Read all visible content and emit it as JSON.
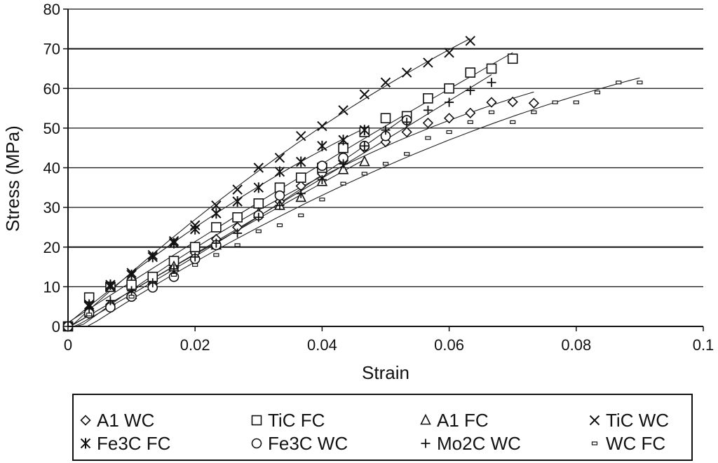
{
  "chart_data": {
    "type": "scatter",
    "title": "",
    "xlabel": "Strain",
    "ylabel": "Stress (MPa)",
    "xlim": [
      0,
      0.1
    ],
    "ylim": [
      0,
      80
    ],
    "x_ticks": [
      "0",
      "0.02",
      "0.04",
      "0.06",
      "0.08",
      "0.1"
    ],
    "y_ticks": [
      "0",
      "10",
      "20",
      "30",
      "40",
      "50",
      "60",
      "70",
      "80"
    ],
    "grid": "horizontal",
    "legend_position": "bottom",
    "series": [
      {
        "name": "A1 WC",
        "marker": "diamond",
        "x": [
          0,
          0.00333,
          0.00667,
          0.01,
          0.01333,
          0.01667,
          0.02,
          0.02333,
          0.02667,
          0.03,
          0.03333,
          0.03667,
          0.04,
          0.04333,
          0.04667,
          0.05,
          0.05333,
          0.05667,
          0.06,
          0.06333,
          0.06667,
          0.07,
          0.07333
        ],
        "y": [
          0,
          4,
          5.5,
          7.8,
          10.7,
          14.8,
          18.5,
          22,
          25,
          28.2,
          31.5,
          35.4,
          38.5,
          41.8,
          45,
          46.5,
          49,
          51.3,
          52.5,
          53.8,
          56.5,
          56.6,
          56.3
        ]
      },
      {
        "name": "TiC FC",
        "marker": "square",
        "x": [
          0,
          0.00333,
          0.00667,
          0.01,
          0.01333,
          0.01667,
          0.02,
          0.02333,
          0.02667,
          0.03,
          0.03333,
          0.03667,
          0.04,
          0.04333,
          0.04667,
          0.05,
          0.05333,
          0.05667,
          0.06,
          0.06333,
          0.06667,
          0.07
        ],
        "y": [
          0,
          7.3,
          10,
          10.5,
          12.5,
          16.5,
          20,
          25,
          27.5,
          31,
          35,
          37.5,
          40,
          45,
          49,
          52.5,
          53,
          57.5,
          60,
          64,
          65,
          67.5
        ]
      },
      {
        "name": "A1 FC",
        "marker": "triangle",
        "x": [
          0.00333,
          0.01,
          0.01667,
          0.02333,
          0.03,
          0.03333,
          0.03667,
          0.04,
          0.04333,
          0.04667
        ],
        "y": [
          3.5,
          8,
          15,
          20.5,
          28.5,
          30.5,
          32.5,
          36.5,
          39.5,
          41.5
        ]
      },
      {
        "name": "TiC WC",
        "marker": "x",
        "x": [
          0.00333,
          0.00667,
          0.01,
          0.01333,
          0.01667,
          0.02,
          0.02333,
          0.02667,
          0.03,
          0.03333,
          0.03667,
          0.04,
          0.04333,
          0.04667,
          0.05,
          0.05333,
          0.05667,
          0.06,
          0.06333
        ],
        "y": [
          5,
          10,
          13.5,
          18,
          21.5,
          25.5,
          30.5,
          34.5,
          40,
          42.5,
          48,
          50.5,
          54.5,
          58.5,
          61.5,
          64,
          66.5,
          69,
          72
        ]
      },
      {
        "name": "Fe3C FC",
        "marker": "asterisk",
        "x": [
          0,
          0.00333,
          0.00667,
          0.01,
          0.01333,
          0.01667,
          0.02,
          0.02333,
          0.02667,
          0.03,
          0.03333,
          0.03667,
          0.04,
          0.04333,
          0.04667
        ],
        "y": [
          0,
          5.5,
          10.5,
          13,
          17.5,
          21,
          24.5,
          28.5,
          31.5,
          35,
          39,
          41.5,
          45.5,
          47,
          49.5
        ]
      },
      {
        "name": "Fe3C WC",
        "marker": "circle",
        "x": [
          0,
          0.00333,
          0.00667,
          0.01,
          0.01333,
          0.01667,
          0.02,
          0.02333,
          0.03,
          0.03333,
          0.04,
          0.04333,
          0.04667,
          0.05,
          0.05333
        ],
        "y": [
          0,
          3.3,
          4.8,
          7.5,
          9.8,
          12.5,
          17,
          20.5,
          28,
          33,
          40.5,
          42.5,
          45.5,
          48,
          52
        ]
      },
      {
        "name": "Mo2C WC",
        "marker": "plus",
        "x": [
          0.00333,
          0.00667,
          0.01,
          0.01333,
          0.01667,
          0.02,
          0.02333,
          0.02667,
          0.03,
          0.03333,
          0.03667,
          0.04,
          0.04333,
          0.04667,
          0.05,
          0.05333,
          0.05667,
          0.06,
          0.06333,
          0.06667
        ],
        "y": [
          4.5,
          6.5,
          9,
          11,
          14.5,
          17.5,
          21,
          23.5,
          27.5,
          30.5,
          33.5,
          37,
          41,
          45.5,
          49.5,
          51.5,
          54.5,
          56.5,
          59.5,
          61.5
        ]
      },
      {
        "name": "WC FC",
        "marker": "dash",
        "x": [
          0.00333,
          0.01,
          0.01667,
          0.02,
          0.02333,
          0.02667,
          0.03,
          0.03333,
          0.03667,
          0.04,
          0.04333,
          0.04667,
          0.05,
          0.05333,
          0.05667,
          0.06,
          0.06333,
          0.06667,
          0.07,
          0.07333,
          0.07667,
          0.08,
          0.08333,
          0.08667,
          0.09
        ],
        "y": [
          3,
          7.5,
          13,
          15.5,
          18,
          20.5,
          24,
          25.5,
          28,
          32,
          36,
          38.5,
          41,
          43.5,
          47.5,
          49,
          51.5,
          54,
          51.5,
          54,
          56.5,
          56.5,
          59,
          61.5,
          61.5
        ]
      }
    ]
  }
}
